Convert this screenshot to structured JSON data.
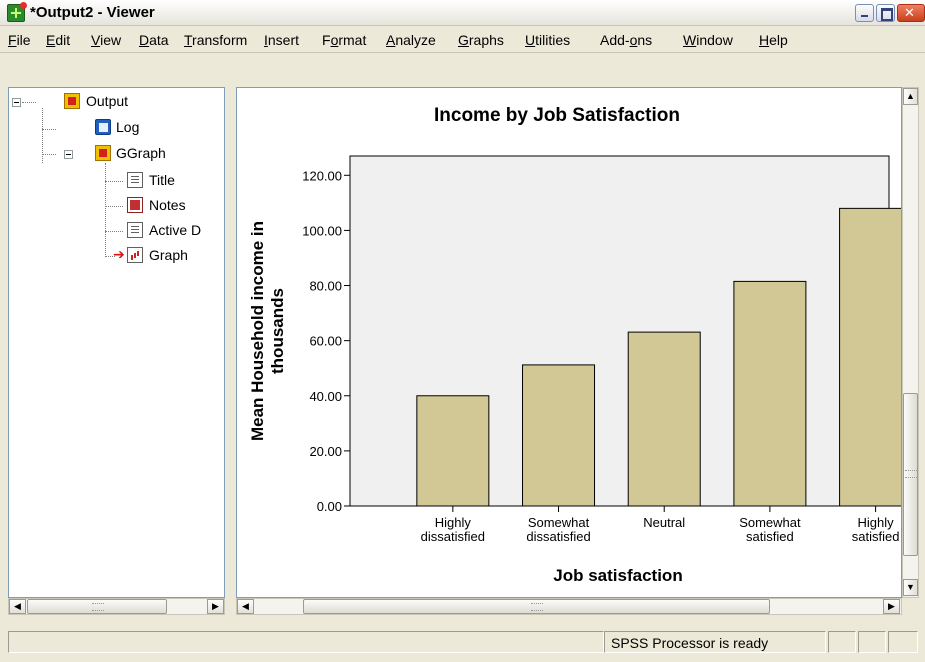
{
  "window": {
    "title": "*Output2 - Viewer"
  },
  "menu": [
    {
      "label": "File",
      "accel": "F"
    },
    {
      "label": "Edit",
      "accel": "E"
    },
    {
      "label": "View",
      "accel": "V"
    },
    {
      "label": "Data",
      "accel": "D"
    },
    {
      "label": "Transform",
      "accel": "T"
    },
    {
      "label": "Insert",
      "accel": "I"
    },
    {
      "label": "Format",
      "accel": "o"
    },
    {
      "label": "Analyze",
      "accel": "A"
    },
    {
      "label": "Graphs",
      "accel": "G"
    },
    {
      "label": "Utilities",
      "accel": "U"
    },
    {
      "label": "Add-ons",
      "accel": "o"
    },
    {
      "label": "Window",
      "accel": "W"
    },
    {
      "label": "Help",
      "accel": "H"
    }
  ],
  "outline": {
    "items": [
      {
        "label": "Output",
        "icon": "output-book-icon"
      },
      {
        "label": "Log",
        "icon": "log-icon"
      },
      {
        "label": "GGraph",
        "icon": "ggraph-book-icon"
      },
      {
        "label": "Title",
        "icon": "title-page-icon"
      },
      {
        "label": "Notes",
        "icon": "notes-icon"
      },
      {
        "label": "Active D",
        "icon": "active-dataset-icon"
      },
      {
        "label": "Graph",
        "icon": "graph-icon",
        "selected_arrow": true
      }
    ]
  },
  "chart_data": {
    "type": "bar",
    "title": "Income by Job Satisfaction",
    "xlabel": "Job satisfaction",
    "ylabel_lines": [
      "Mean Household income in",
      "thousands"
    ],
    "categories": [
      [
        "Highly",
        "dissatisfied"
      ],
      [
        "Somewhat",
        "dissatisfied"
      ],
      [
        "Neutral"
      ],
      [
        "Somewhat",
        "satisfied"
      ],
      [
        "Highly",
        "satisfied"
      ]
    ],
    "values": [
      40.0,
      51.2,
      63.1,
      81.5,
      108.0
    ],
    "yticks": [
      "0.00",
      "20.00",
      "40.00",
      "60.00",
      "80.00",
      "100.00",
      "120.00"
    ],
    "ylim": [
      0,
      127
    ],
    "bar_color": "#d2c896",
    "plot_background": "#f0f0f0",
    "grid": false
  },
  "status": {
    "message": "SPSS  Processor is ready"
  }
}
